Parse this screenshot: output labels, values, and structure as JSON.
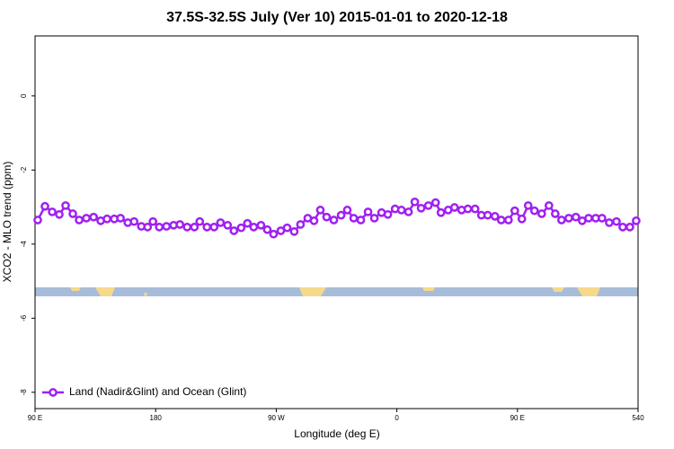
{
  "chart_data": {
    "type": "line",
    "title": "37.5S-32.5S July (Ver 10)   2015-01-01 to 2020-12-18",
    "x_label": "Longitude (deg E)",
    "y_label": "XCO2 - MLO trend (ppm)",
    "xlim": [
      90,
      540
    ],
    "xticks": [
      {
        "value": 90,
        "label": "90 E"
      },
      180,
      {
        "value": 270,
        "label": "90 W"
      },
      {
        "value": 360,
        "label": "0"
      },
      {
        "value": 450,
        "label": "90 E"
      },
      540
    ],
    "xtick_label_overrides": null,
    "ylim": [
      -8.44,
      1.62
    ],
    "yticks": [
      0,
      -2,
      -4,
      -6,
      -8
    ],
    "legend": "bottom-left",
    "series": [
      {
        "name": "Land (Nadir&Glint) and Ocean (Glint)",
        "color": "#a020f0",
        "x": [
          92.0,
          97.4,
          102.8,
          108.1,
          112.8,
          118.2,
          122.9,
          128.3,
          133.7,
          139.0,
          143.7,
          149.1,
          153.8,
          159.2,
          163.9,
          169.3,
          174.0,
          178.0,
          182.7,
          188.1,
          193.4,
          198.1,
          203.5,
          208.9,
          212.9,
          218.3,
          223.6,
          228.4,
          233.7,
          238.4,
          243.8,
          248.5,
          253.2,
          258.6,
          263.3,
          268.0,
          273.4,
          278.1,
          283.4,
          288.1,
          293.5,
          298.2,
          302.9,
          307.6,
          313.0,
          318.4,
          323.0,
          327.8,
          333.1,
          338.5,
          343.2,
          348.6,
          353.3,
          358.7,
          363.4,
          368.7,
          373.4,
          378.1,
          383.5,
          388.9,
          392.9,
          398.3,
          403.0,
          408.3,
          413.0,
          418.4,
          423.1,
          427.8,
          433.2,
          437.9,
          443.3,
          448.0,
          453.3,
          458.0,
          462.7,
          468.1,
          473.5,
          478.2,
          482.9,
          488.3,
          493.6,
          498.3,
          503.1,
          508.4,
          513.1,
          518.5,
          523.9,
          528.6,
          533.9,
          538.6
        ],
        "values": [
          -3.35,
          -2.98,
          -3.13,
          -3.2,
          -2.96,
          -3.18,
          -3.35,
          -3.3,
          -3.27,
          -3.37,
          -3.32,
          -3.32,
          -3.3,
          -3.42,
          -3.39,
          -3.52,
          -3.54,
          -3.39,
          -3.54,
          -3.52,
          -3.49,
          -3.47,
          -3.54,
          -3.54,
          -3.39,
          -3.54,
          -3.54,
          -3.42,
          -3.49,
          -3.64,
          -3.56,
          -3.44,
          -3.54,
          -3.49,
          -3.61,
          -3.73,
          -3.64,
          -3.56,
          -3.66,
          -3.47,
          -3.3,
          -3.37,
          -3.08,
          -3.27,
          -3.35,
          -3.22,
          -3.08,
          -3.3,
          -3.35,
          -3.13,
          -3.3,
          -3.15,
          -3.2,
          -3.05,
          -3.08,
          -3.13,
          -2.86,
          -3.03,
          -2.96,
          -2.88,
          -3.15,
          -3.08,
          -3.01,
          -3.08,
          -3.05,
          -3.05,
          -3.22,
          -3.22,
          -3.25,
          -3.35,
          -3.35,
          -3.1,
          -3.32,
          -2.96,
          -3.1,
          -3.18,
          -2.96,
          -3.18,
          -3.35,
          -3.3,
          -3.27,
          -3.37,
          -3.3,
          -3.3,
          -3.3,
          -3.42,
          -3.39,
          -3.54,
          -3.54,
          -3.37
        ]
      }
    ]
  }
}
